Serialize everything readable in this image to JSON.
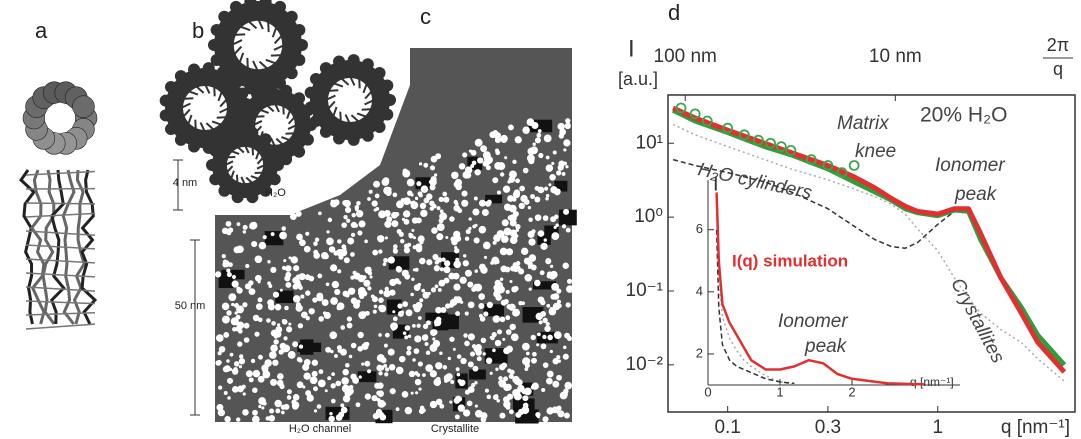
{
  "panels": {
    "a": {
      "label": "a"
    },
    "b": {
      "label": "b",
      "water": "H₂O",
      "size": "4 nm",
      "water_small": "H₂O"
    },
    "c": {
      "label": "c",
      "size": "50 nm",
      "channel": "H₂O channel",
      "crystallite": "Crystallite"
    },
    "d": {
      "label": "d"
    }
  },
  "chart_data": [
    {
      "type": "line",
      "x_scale": "log",
      "y_scale": "log",
      "xlim": [
        0.052,
        4.5
      ],
      "ylim": [
        0.0023,
        45
      ],
      "xticks": [
        0.1,
        0.3,
        1
      ],
      "yticks": [
        {
          "value": 10,
          "label": "10¹"
        },
        {
          "value": 1,
          "label": "10⁰"
        },
        {
          "value": 0.1,
          "label": "10⁻¹"
        },
        {
          "value": 0.01,
          "label": "10⁻²"
        }
      ],
      "x2ticks": [
        {
          "value": 0.0628,
          "label": "100 nm"
        },
        {
          "value": 0.628,
          "label": "10 nm"
        }
      ],
      "x2_label": {
        "numerator": "2π",
        "denominator": "q"
      },
      "xlabel": "q [nm⁻¹]",
      "ylabel": "I",
      "yunit": "[a.u.]",
      "annotations": {
        "condition": "20% H₂O",
        "matrix": "Matrix",
        "knee": "knee",
        "ionomer": "Ionomer",
        "peak": "peak",
        "cylinders": "H₂O cylinders",
        "crystallites": "Crystallites"
      },
      "series": [
        {
          "color": "#aaaaaa",
          "style": "dotted",
          "x": [
            0.055,
            0.07,
            0.1,
            0.15,
            0.2,
            0.3,
            0.4,
            0.5,
            0.6,
            0.7,
            0.8,
            1.0,
            1.2,
            1.4,
            1.6,
            2.0,
            2.5,
            3.0,
            4.0
          ],
          "values": [
            18,
            13,
            9,
            6,
            4.5,
            3.2,
            2.4,
            1.9,
            1.5,
            1.1,
            0.7,
            0.35,
            0.15,
            0.08,
            0.05,
            0.03,
            0.02,
            0.012,
            0.006
          ]
        },
        {
          "color": "#333333",
          "style": "dashed",
          "x": [
            0.055,
            0.07,
            0.1,
            0.15,
            0.2,
            0.3,
            0.4,
            0.5,
            0.6,
            0.7,
            0.8,
            1.0,
            1.2,
            1.4,
            1.6,
            2.0,
            2.5,
            3.0,
            4.0
          ],
          "values": [
            6,
            5,
            4,
            3,
            2.2,
            1.3,
            0.75,
            0.5,
            0.4,
            0.38,
            0.45,
            0.8,
            1.2,
            1.2,
            null,
            null,
            null,
            null,
            null
          ]
        },
        {
          "color": "#2e9e3e",
          "style": "solid",
          "x": [
            0.055,
            0.07,
            0.1,
            0.15,
            0.2,
            0.3,
            0.4,
            0.5,
            0.6,
            0.7,
            0.8,
            1.0,
            1.2,
            1.4,
            1.6,
            2.0,
            2.5,
            3.0,
            4.0
          ],
          "values": [
            28,
            20,
            14,
            9,
            7,
            4.5,
            3,
            2.2,
            1.7,
            1.3,
            1.15,
            1.05,
            1.25,
            1.2,
            0.5,
            0.15,
            0.06,
            0.025,
            0.01
          ]
        },
        {
          "color": "#e03030",
          "style": "solid",
          "x": [
            0.055,
            0.07,
            0.1,
            0.15,
            0.2,
            0.3,
            0.4,
            0.5,
            0.6,
            0.7,
            0.8,
            1.0,
            1.2,
            1.4,
            1.6,
            2.0,
            2.5,
            3.0,
            4.0
          ],
          "values": [
            30,
            22,
            15,
            10,
            7.5,
            5,
            3.5,
            2.5,
            1.8,
            1.4,
            1.2,
            1.1,
            1.3,
            1.3,
            0.6,
            0.15,
            0.05,
            0.02,
            0.008
          ]
        },
        {
          "color": "#3aa84a",
          "style": "markers",
          "x": [
            0.06,
            0.07,
            0.08,
            0.1,
            0.12,
            0.14,
            0.16,
            0.18,
            0.2,
            0.25,
            0.3,
            0.35,
            0.4
          ],
          "values": [
            30,
            25,
            20,
            16,
            13,
            11,
            10,
            9,
            8,
            6,
            5,
            4,
            5
          ]
        }
      ]
    },
    {
      "type": "line",
      "x_scale": "linear",
      "y_scale": "linear",
      "xlim": [
        0,
        3.5
      ],
      "ylim": [
        1,
        7.6
      ],
      "xticks": [
        0,
        1,
        2
      ],
      "yticks": [
        2,
        4,
        6
      ],
      "xlabel": "q [nm⁻¹]",
      "ylabel": "I",
      "annotations": {
        "ionomer": "Ionomer",
        "peak": "peak"
      },
      "series": [
        {
          "color": "#aaaaaa",
          "style": "dotted",
          "x": [
            0.12,
            0.15,
            0.2,
            0.3,
            0.4,
            0.5,
            0.6,
            0.8,
            1.0,
            1.2,
            1.4,
            1.6,
            1.8,
            2.0,
            2.5,
            3.0
          ],
          "values": [
            6.5,
            4.5,
            3.2,
            2.5,
            2.1,
            1.8,
            1.6,
            1.3,
            1.1,
            1.02,
            null,
            null,
            null,
            null,
            null,
            null
          ]
        },
        {
          "color": "#333333",
          "style": "dashed",
          "x": [
            0.12,
            0.15,
            0.2,
            0.3,
            0.4,
            0.5,
            0.6,
            0.8,
            1.0,
            1.2,
            1.4,
            1.6,
            1.8,
            2.0,
            2.5,
            3.0
          ],
          "values": [
            6,
            3.5,
            2.3,
            1.8,
            1.6,
            1.5,
            1.4,
            1.2,
            1.1,
            1.05,
            null,
            null,
            null,
            null,
            null,
            null
          ]
        },
        {
          "name": "I(q) simulation",
          "color": "#e03030",
          "style": "solid",
          "x": [
            0.12,
            0.15,
            0.2,
            0.3,
            0.4,
            0.5,
            0.6,
            0.8,
            1.0,
            1.2,
            1.4,
            1.6,
            1.8,
            2.0,
            2.5,
            3.0
          ],
          "values": [
            7.2,
            5,
            3.6,
            3.0,
            2.6,
            2.2,
            1.8,
            1.5,
            1.5,
            1.6,
            1.8,
            1.7,
            1.35,
            1.2,
            1.05,
            1.02
          ]
        }
      ]
    }
  ]
}
